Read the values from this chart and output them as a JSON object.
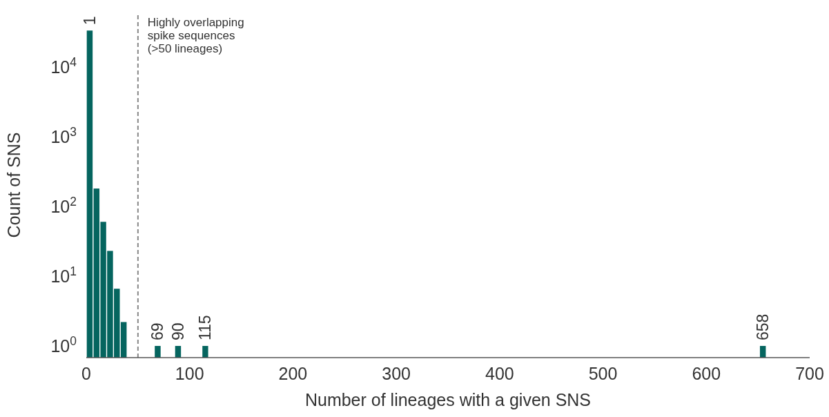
{
  "chart_data": {
    "type": "histogram",
    "xlabel": "Number of lineages with a given SNS",
    "ylabel": "Count of SNS",
    "bins": [
      0,
      6.6,
      13.2,
      19.7,
      26.3,
      32.9,
      39.5,
      65.8,
      72.4,
      85.5,
      92.1,
      111.9,
      118.4,
      651.4,
      658
    ],
    "values": [
      33000,
      180,
      60,
      23,
      6.6,
      2.2,
      null,
      1,
      null,
      1,
      null,
      1,
      null,
      1
    ],
    "color": "#05655f",
    "xlim": [
      0,
      700
    ],
    "xticks": [
      0,
      100,
      200,
      300,
      400,
      500,
      600,
      700
    ],
    "ylim": [
      0.68,
      60000
    ],
    "yticks": [
      {
        "value": 1,
        "label": "10$^{0}$"
      },
      {
        "value": 10,
        "label": "10$^{1}$"
      },
      {
        "value": 100,
        "label": "10$^{2}$"
      },
      {
        "value": 1000,
        "label": "10$^{3}$"
      },
      {
        "value": 10000,
        "label": "10$^{4}$"
      }
    ],
    "log": "y",
    "ref_lines": [
      {
        "axis": "x",
        "value": 50,
        "label": "Highly overlapping\nspike sequences\n(>50 lineages)",
        "color": "#888888",
        "line_style": "dashed"
      }
    ],
    "annotations": [
      {
        "text": "1",
        "x": 3.3,
        "y": 33000
      },
      {
        "text": "69",
        "x": 69,
        "y": 1
      },
      {
        "text": "90",
        "x": 88.8,
        "y": 1
      },
      {
        "text": "115",
        "x": 115,
        "y": 1
      },
      {
        "text": "658",
        "x": 654.7,
        "y": 1
      }
    ]
  }
}
